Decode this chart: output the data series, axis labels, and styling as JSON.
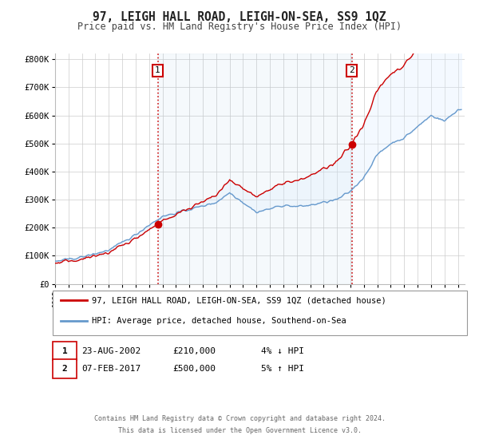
{
  "title": "97, LEIGH HALL ROAD, LEIGH-ON-SEA, SS9 1QZ",
  "subtitle": "Price paid vs. HM Land Registry's House Price Index (HPI)",
  "ylabel_ticks": [
    "£0",
    "£100K",
    "£200K",
    "£300K",
    "£400K",
    "£500K",
    "£600K",
    "£700K",
    "£800K"
  ],
  "ytick_values": [
    0,
    100000,
    200000,
    300000,
    400000,
    500000,
    600000,
    700000,
    800000
  ],
  "ylim": [
    0,
    820000
  ],
  "xlim_start": 1995.0,
  "xlim_end": 2025.5,
  "transaction1": {
    "date": 2002.64,
    "price": 210000,
    "label": "1",
    "date_str": "23-AUG-2002",
    "price_str": "£210,000",
    "hpi_str": "4% ↓ HPI"
  },
  "transaction2": {
    "date": 2017.09,
    "price": 500000,
    "label": "2",
    "date_str": "07-FEB-2017",
    "price_str": "£500,000",
    "hpi_str": "5% ↑ HPI"
  },
  "legend_line1": "97, LEIGH HALL ROAD, LEIGH-ON-SEA, SS9 1QZ (detached house)",
  "legend_line2": "HPI: Average price, detached house, Southend-on-Sea",
  "footer1": "Contains HM Land Registry data © Crown copyright and database right 2024.",
  "footer2": "This data is licensed under the Open Government Licence v3.0.",
  "line_color_red": "#cc0000",
  "line_color_blue": "#6699cc",
  "fill_color_blue": "#ddeeff",
  "vline_color": "#cc0000",
  "background_color": "#ffffff",
  "grid_color": "#cccccc"
}
